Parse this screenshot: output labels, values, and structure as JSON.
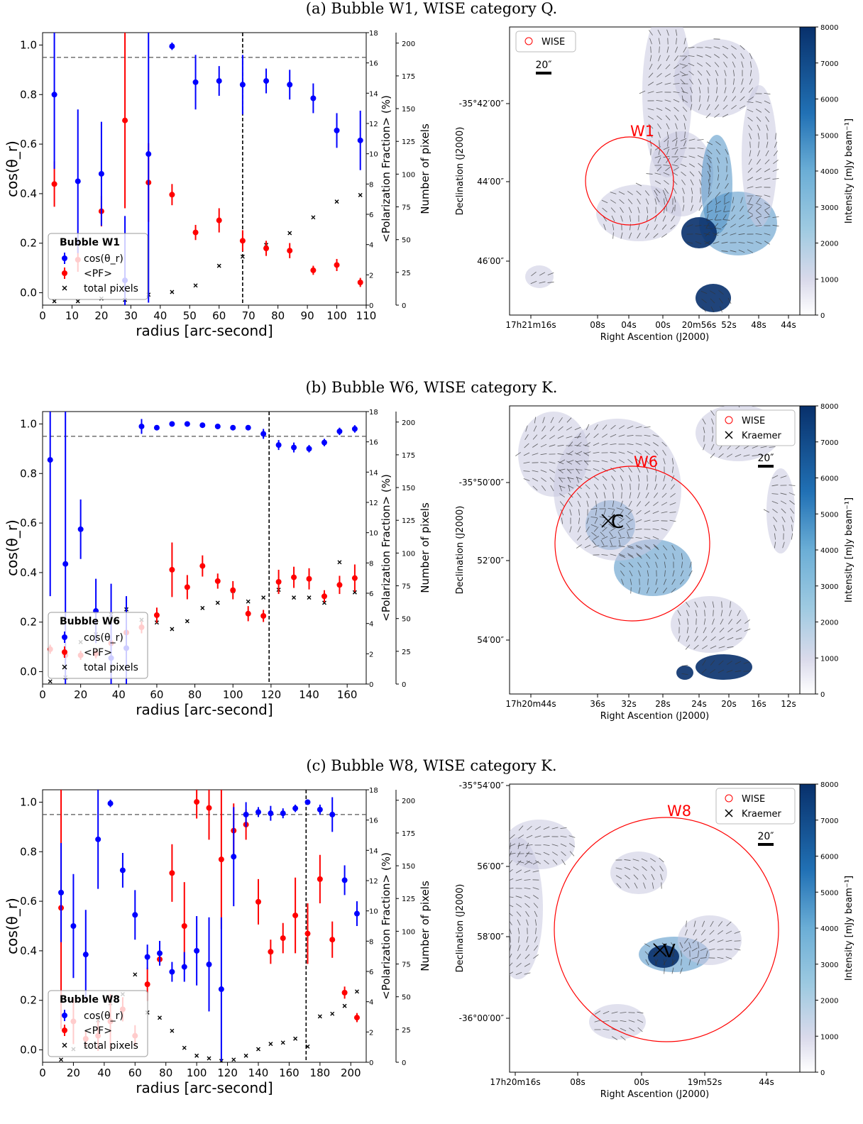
{
  "colors": {
    "cos": "#0000ff",
    "pf": "#ff0000",
    "pix": "#000000",
    "circle": "#ff0000",
    "map_hi": "#08306b",
    "map_lo": "#f7f4f9"
  },
  "chart_data": [
    {
      "type": "scatter",
      "caption": "(a) Bubble W1, WISE category Q.",
      "legend_title": "Bubble W1",
      "legend": [
        "cos(θ_r)",
        "<PF>",
        "total pixels"
      ],
      "xlabel": "radius [arc-second]",
      "ylabel": "cos(θ_r)",
      "ylabel2": "<Polarization Fraction> (%)",
      "ylabel3": "Number of pixels",
      "xlim": [
        0,
        110
      ],
      "xticks": [
        0,
        10,
        20,
        30,
        40,
        50,
        60,
        70,
        80,
        90,
        100,
        110
      ],
      "ylim": [
        -0.05,
        1.05
      ],
      "yticks": [
        "0.0",
        "0.2",
        "0.4",
        "0.6",
        "0.8",
        "1.0"
      ],
      "pf_lim": [
        0,
        18
      ],
      "pf_ticks": [
        0,
        2,
        4,
        6,
        8,
        10,
        12,
        14,
        16,
        18
      ],
      "pix_lim": [
        0,
        208
      ],
      "pix_ticks": [
        0,
        25,
        50,
        75,
        100,
        125,
        150,
        175,
        200
      ],
      "hline": 0.95,
      "vline": 68,
      "series": [
        {
          "name": "cos(θ_r)",
          "x": [
            4,
            12,
            20,
            28,
            36,
            44,
            52,
            60,
            68,
            76,
            84,
            92,
            100,
            108
          ],
          "y": [
            0.8,
            0.45,
            0.48,
            0.05,
            0.56,
            0.995,
            0.85,
            0.855,
            0.84,
            0.855,
            0.84,
            0.785,
            0.655,
            0.615
          ],
          "err": [
            0.3,
            0.29,
            0.21,
            0.26,
            0.6,
            0.015,
            0.11,
            0.06,
            0.12,
            0.05,
            0.06,
            0.06,
            0.07,
            0.12
          ]
        },
        {
          "name": "<PF>",
          "x": [
            4,
            12,
            20,
            28,
            36,
            44,
            52,
            60,
            68,
            76,
            84,
            92,
            100,
            108
          ],
          "y": [
            8.0,
            3.0,
            6.2,
            12.2,
            8.1,
            7.3,
            4.8,
            5.6,
            4.25,
            3.75,
            3.6,
            2.3,
            2.65,
            1.5
          ],
          "err": [
            1.5,
            0.8,
            1.0,
            5.8,
            2.6,
            0.7,
            0.5,
            0.8,
            0.7,
            0.5,
            0.5,
            0.3,
            0.4,
            0.3
          ]
        },
        {
          "name": "total pixels",
          "x": [
            4,
            12,
            20,
            28,
            36,
            44,
            52,
            60,
            68,
            76,
            84,
            92,
            100,
            108
          ],
          "y": [
            3,
            3,
            5,
            4,
            8,
            10,
            15,
            30,
            37,
            46,
            55,
            67,
            79,
            84
          ]
        }
      ]
    },
    {
      "type": "scatter",
      "caption": "(b) Bubble W6, WISE category K.",
      "legend_title": "Bubble W6",
      "legend": [
        "cos(θ_r)",
        "<PF>",
        "total pixels"
      ],
      "xlabel": "radius [arc-second]",
      "ylabel": "cos(θ_r)",
      "ylabel2": "<Polarization Fraction> (%)",
      "ylabel3": "Number of pixels",
      "xlim": [
        0,
        170
      ],
      "xticks": [
        0,
        20,
        40,
        60,
        80,
        100,
        120,
        140,
        160
      ],
      "ylim": [
        -0.05,
        1.05
      ],
      "yticks": [
        "0.0",
        "0.2",
        "0.4",
        "0.6",
        "0.8",
        "1.0"
      ],
      "pf_lim": [
        0,
        18
      ],
      "pf_ticks": [
        0,
        2,
        4,
        6,
        8,
        10,
        12,
        14,
        16,
        18
      ],
      "pix_lim": [
        0,
        208
      ],
      "pix_ticks": [
        0,
        25,
        50,
        75,
        100,
        125,
        150,
        175,
        200
      ],
      "hline": 0.95,
      "vline": 119,
      "series": [
        {
          "name": "cos(θ_r)",
          "x": [
            4,
            12,
            20,
            28,
            36,
            44,
            52,
            60,
            68,
            76,
            84,
            92,
            100,
            108,
            116,
            124,
            132,
            140,
            148,
            156,
            164
          ],
          "y": [
            0.855,
            0.435,
            0.575,
            0.245,
            0.055,
            0.095,
            0.99,
            0.985,
            1.0,
            1.0,
            0.995,
            0.99,
            0.985,
            0.985,
            0.96,
            0.915,
            0.905,
            0.9,
            0.925,
            0.97,
            0.98
          ],
          "err": [
            0.55,
            0.62,
            0.12,
            0.13,
            0.3,
            0.21,
            0.03,
            0.01,
            0.005,
            0.005,
            0.005,
            0.008,
            0.008,
            0.008,
            0.02,
            0.02,
            0.02,
            0.015,
            0.015,
            0.015,
            0.015
          ]
        },
        {
          "name": "<PF>",
          "x": [
            4,
            12,
            20,
            28,
            36,
            44,
            52,
            60,
            68,
            76,
            84,
            92,
            100,
            108,
            116,
            124,
            132,
            140,
            148,
            156,
            164
          ],
          "y": [
            2.3,
            1.9,
            1.9,
            2.0,
            2.7,
            3.4,
            3.75,
            4.55,
            7.55,
            6.4,
            7.8,
            6.8,
            6.2,
            4.65,
            4.5,
            6.75,
            7.05,
            6.95,
            5.8,
            6.55,
            7.0
          ],
          "err": [
            0.3,
            0.3,
            0.3,
            0.3,
            0.3,
            0.4,
            0.4,
            0.5,
            1.8,
            0.8,
            0.7,
            0.5,
            0.6,
            0.5,
            0.4,
            0.8,
            0.7,
            0.7,
            0.4,
            0.6,
            0.9
          ]
        },
        {
          "name": "total pixels",
          "x": [
            4,
            12,
            20,
            28,
            36,
            44,
            52,
            60,
            68,
            76,
            84,
            92,
            100,
            108,
            116,
            124,
            132,
            140,
            148,
            156,
            164
          ],
          "y": [
            2,
            5,
            32,
            38,
            53,
            57,
            49,
            47,
            42,
            48,
            58,
            62,
            71,
            63,
            66,
            72,
            66,
            66,
            62,
            93,
            70
          ]
        }
      ]
    },
    {
      "type": "scatter",
      "caption": "(c) Bubble W8, WISE category K.",
      "legend_title": "Bubble W8",
      "legend": [
        "cos(θ_r)",
        "<PF>",
        "total pixels"
      ],
      "xlabel": "radius [arc-second]",
      "ylabel": "cos(θ_r)",
      "ylabel2": "<Polarization Fraction> (%)",
      "ylabel3": "Number of pixels",
      "xlim": [
        0,
        210
      ],
      "xticks": [
        0,
        20,
        40,
        60,
        80,
        100,
        120,
        140,
        160,
        180,
        200
      ],
      "ylim": [
        -0.05,
        1.05
      ],
      "yticks": [
        "0.0",
        "0.2",
        "0.4",
        "0.6",
        "0.8",
        "1.0"
      ],
      "pf_lim": [
        0,
        18
      ],
      "pf_ticks": [
        0,
        2,
        4,
        6,
        8,
        10,
        12,
        14,
        16,
        18
      ],
      "pix_lim": [
        0,
        208
      ],
      "pix_ticks": [
        0,
        25,
        50,
        75,
        100,
        125,
        150,
        175,
        200
      ],
      "hline": 0.95,
      "vline": 171,
      "series": [
        {
          "name": "cos(θ_r)",
          "x": [
            12,
            20,
            28,
            36,
            44,
            52,
            60,
            68,
            76,
            84,
            92,
            100,
            108,
            116,
            124,
            132,
            140,
            148,
            156,
            164,
            172,
            180,
            188,
            196,
            204
          ],
          "y": [
            0.635,
            0.5,
            0.385,
            0.85,
            0.995,
            0.725,
            0.545,
            0.375,
            0.39,
            0.315,
            0.335,
            0.4,
            0.345,
            0.245,
            0.78,
            0.95,
            0.96,
            0.955,
            0.955,
            0.975,
            1.0,
            0.97,
            0.95,
            0.685,
            0.55
          ],
          "err": [
            0.2,
            0.21,
            0.18,
            0.2,
            0.015,
            0.07,
            0.1,
            0.05,
            0.05,
            0.04,
            0.06,
            0.14,
            0.19,
            0.29,
            0.2,
            0.05,
            0.02,
            0.03,
            0.02,
            0.015,
            0.005,
            0.02,
            0.07,
            0.06,
            0.05
          ]
        },
        {
          "name": "<PF>",
          "x": [
            12,
            20,
            28,
            36,
            44,
            52,
            60,
            68,
            76,
            84,
            92,
            100,
            108,
            116,
            124,
            132,
            140,
            148,
            156,
            164,
            172,
            180,
            188,
            196,
            204
          ],
          "y": [
            10.2,
            2.7,
            1.55,
            1.75,
            2.7,
            3.5,
            1.75,
            5.15,
            6.8,
            12.5,
            9.0,
            17.2,
            16.8,
            13.4,
            15.3,
            15.7,
            10.6,
            7.3,
            8.2,
            9.7,
            8.5,
            12.1,
            8.1,
            4.6,
            2.95
          ],
          "err": [
            8.0,
            1.5,
            0.5,
            1.0,
            1.8,
            0.8,
            0.7,
            1.1,
            0.3,
            1.9,
            2.9,
            1.1,
            2.1,
            4.6,
            1.8,
            1.0,
            1.5,
            0.8,
            1.0,
            2.5,
            2.0,
            1.6,
            1.2,
            0.4,
            0.3
          ]
        },
        {
          "name": "total pixels",
          "x": [
            12,
            20,
            28,
            36,
            44,
            52,
            60,
            68,
            76,
            84,
            92,
            100,
            108,
            116,
            124,
            132,
            140,
            148,
            156,
            164,
            172,
            180,
            188,
            196,
            204
          ],
          "y": [
            2,
            10,
            12,
            32,
            45,
            52,
            67,
            38,
            34,
            24,
            11,
            5,
            3,
            1,
            2,
            5,
            10,
            14,
            15,
            18,
            12,
            35,
            37,
            43,
            54
          ]
        }
      ]
    }
  ],
  "maps": [
    {
      "object": "W1",
      "legend": [
        "WISE"
      ],
      "scalebar": "20″",
      "dec_ticks": [
        "-35°42′00″",
        "44′00″",
        "46′00″"
      ],
      "ra_ticks": [
        "17h21m16s",
        "08s",
        "04s",
        "00s",
        "20m56s",
        "52s",
        "48s",
        "44s"
      ],
      "xlabel": "Right Ascention (J2000)",
      "ylabel": "Declination (J2000)",
      "colorbar_label": "Intensity [mJy beam⁻¹]",
      "colorbar_ticks": [
        0,
        1000,
        2000,
        3000,
        4000,
        5000,
        6000,
        7000,
        8000
      ],
      "source_label": ""
    },
    {
      "object": "W6",
      "legend": [
        "WISE",
        "Kraemer"
      ],
      "scalebar": "20″",
      "dec_ticks": [
        "-35°50′00″",
        "52′00″",
        "54′00″"
      ],
      "ra_ticks": [
        "17h20m44s",
        "36s",
        "32s",
        "28s",
        "24s",
        "20s",
        "16s",
        "12s"
      ],
      "xlabel": "Right Ascention (J2000)",
      "ylabel": "Declination (J2000)",
      "colorbar_label": "Intensity [mJy beam⁻¹]",
      "colorbar_ticks": [
        0,
        1000,
        2000,
        3000,
        4000,
        5000,
        6000,
        7000,
        8000
      ],
      "source_label": "C"
    },
    {
      "object": "W8",
      "legend": [
        "WISE",
        "Kraemer"
      ],
      "scalebar": "20″",
      "dec_ticks": [
        "-35°54′00″",
        "56′00″",
        "58′00″",
        "-36°00′00″"
      ],
      "ra_ticks": [
        "17h20m16s",
        "08s",
        "00s",
        "19m52s",
        "44s"
      ],
      "xlabel": "Right Ascention (J2000)",
      "ylabel": "Declination (J2000)",
      "colorbar_label": "Intensity [mJy beam⁻¹]",
      "colorbar_ticks": [
        0,
        1000,
        2000,
        3000,
        4000,
        5000,
        6000,
        7000,
        8000
      ],
      "source_label": "V"
    }
  ]
}
